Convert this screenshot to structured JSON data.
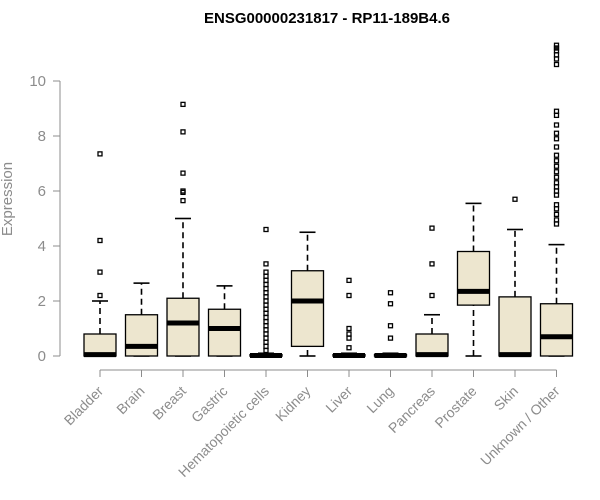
{
  "chart_data": {
    "type": "boxplot",
    "title": "ENSG00000231817 - RP11-189B4.6",
    "xlabel": "",
    "ylabel": "Expression",
    "ylim": [
      0,
      11
    ],
    "yticks": [
      0,
      2,
      4,
      6,
      8,
      10
    ],
    "box_fill": "#ede6cf",
    "categories": [
      "Bladder",
      "Brain",
      "Breast",
      "Gastric",
      "Hematopoietic cells",
      "Kidney",
      "Liver",
      "Lung",
      "Pancreas",
      "Prostate",
      "Skin",
      "Unknown / Other"
    ],
    "boxes": [
      {
        "category": "Bladder",
        "whisker_low": 0,
        "q1": 0,
        "median": 0.05,
        "q3": 0.8,
        "whisker_high": 2.0,
        "outliers": [
          2.2,
          3.05,
          4.2,
          7.35
        ]
      },
      {
        "category": "Brain",
        "whisker_low": 0,
        "q1": 0,
        "median": 0.35,
        "q3": 1.5,
        "whisker_high": 2.65,
        "outliers": []
      },
      {
        "category": "Breast",
        "whisker_low": 0,
        "q1": 0,
        "median": 1.2,
        "q3": 2.1,
        "whisker_high": 5.0,
        "outliers": [
          5.65,
          5.95,
          6.0,
          6.65,
          8.15,
          9.15
        ]
      },
      {
        "category": "Gastric",
        "whisker_low": 0,
        "q1": 0,
        "median": 1.0,
        "q3": 1.7,
        "whisker_high": 2.55,
        "outliers": []
      },
      {
        "category": "Hematopoietic cells",
        "whisker_low": 0,
        "q1": 0,
        "median": 0.02,
        "q3": 0.05,
        "whisker_high": 0.1,
        "outliers": [
          0.2,
          0.35,
          0.5,
          0.65,
          0.8,
          0.95,
          1.1,
          1.25,
          1.4,
          1.55,
          1.7,
          1.85,
          2.0,
          2.15,
          2.3,
          2.45,
          2.6,
          2.75,
          2.9,
          3.05,
          3.35,
          4.6
        ]
      },
      {
        "category": "Kidney",
        "whisker_low": 0,
        "q1": 0.35,
        "median": 2.0,
        "q3": 3.1,
        "whisker_high": 4.5,
        "outliers": []
      },
      {
        "category": "Liver",
        "whisker_low": 0,
        "q1": 0,
        "median": 0.02,
        "q3": 0.05,
        "whisker_high": 0.1,
        "outliers": [
          0.3,
          0.65,
          0.8,
          1.0,
          2.2,
          2.75
        ]
      },
      {
        "category": "Lung",
        "whisker_low": 0,
        "q1": 0,
        "median": 0.02,
        "q3": 0.05,
        "whisker_high": 0.1,
        "outliers": [
          0.65,
          1.1,
          1.9,
          2.3
        ]
      },
      {
        "category": "Pancreas",
        "whisker_low": 0,
        "q1": 0,
        "median": 0.05,
        "q3": 0.8,
        "whisker_high": 1.5,
        "outliers": [
          2.2,
          3.35,
          4.65
        ]
      },
      {
        "category": "Prostate",
        "whisker_low": 0,
        "q1": 1.85,
        "median": 2.35,
        "q3": 3.8,
        "whisker_high": 5.55,
        "outliers": []
      },
      {
        "category": "Skin",
        "whisker_low": 0,
        "q1": 0,
        "median": 0.05,
        "q3": 2.15,
        "whisker_high": 4.6,
        "outliers": [
          5.7
        ]
      },
      {
        "category": "Unknown / Other",
        "whisker_low": 0,
        "q1": 0,
        "median": 0.7,
        "q3": 1.9,
        "whisker_high": 4.05,
        "outliers": [
          4.8,
          4.95,
          5.15,
          5.35,
          5.5,
          5.85,
          6.0,
          6.15,
          6.3,
          6.5,
          6.7,
          6.9,
          7.1,
          7.3,
          7.6,
          7.9,
          8.1,
          8.4,
          8.75,
          8.9,
          10.6,
          10.8,
          10.95,
          11.1,
          11.2,
          11.3
        ]
      }
    ]
  }
}
